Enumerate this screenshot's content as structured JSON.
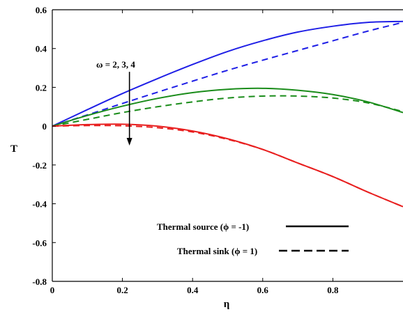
{
  "chart_data": {
    "type": "line",
    "title": "",
    "xlabel": "η",
    "ylabel": "T",
    "xlim": [
      0,
      1
    ],
    "ylim": [
      -0.8,
      0.6
    ],
    "xticks": [
      0,
      0.2,
      0.4,
      0.6,
      0.8
    ],
    "xtick_labels": [
      "0",
      "0.2",
      "0.4",
      "0.6",
      "0.8"
    ],
    "yticks": [
      -0.8,
      -0.6,
      -0.4,
      -0.2,
      0,
      0.2,
      0.4,
      0.6
    ],
    "ytick_labels": [
      "-0.8",
      "-0.6",
      "-0.4",
      "-0.2",
      "0",
      "0.2",
      "0.4",
      "0.6"
    ],
    "grid": false,
    "x": [
      0,
      0.1,
      0.2,
      0.3,
      0.4,
      0.5,
      0.6,
      0.7,
      0.8,
      0.9,
      1.0
    ],
    "series": [
      {
        "color": "#1f1fe6",
        "style": "solid",
        "values": [
          0,
          0.085,
          0.168,
          0.245,
          0.318,
          0.385,
          0.44,
          0.485,
          0.515,
          0.535,
          0.54
        ]
      },
      {
        "color": "#1f1fe6",
        "style": "dashed",
        "values": [
          0,
          0.058,
          0.117,
          0.175,
          0.232,
          0.288,
          0.34,
          0.39,
          0.44,
          0.49,
          0.535
        ]
      },
      {
        "color": "#1a8c1a",
        "style": "solid",
        "values": [
          0,
          0.055,
          0.103,
          0.143,
          0.173,
          0.19,
          0.195,
          0.185,
          0.163,
          0.125,
          0.07
        ]
      },
      {
        "color": "#1a8c1a",
        "style": "dashed",
        "values": [
          0,
          0.035,
          0.07,
          0.1,
          0.125,
          0.145,
          0.155,
          0.155,
          0.145,
          0.12,
          0.075
        ]
      },
      {
        "color": "#e81f1f",
        "style": "solid",
        "values": [
          0,
          0.008,
          0.01,
          0.0,
          -0.025,
          -0.065,
          -0.12,
          -0.19,
          -0.26,
          -0.34,
          -0.415
        ]
      },
      {
        "color": "#e81f1f",
        "style": "dashed",
        "values": [
          0,
          0.003,
          0.002,
          -0.008,
          -0.03,
          -0.068,
          -0.12,
          -0.19,
          -0.26,
          -0.34,
          -0.415
        ]
      }
    ],
    "annotations": [
      {
        "text": "ω = 2, 3, 4",
        "arrow_x": 0.22,
        "arrow_from": 0.28,
        "arrow_to": -0.1
      }
    ],
    "legend": {
      "placement": "bottom-right",
      "entries": [
        {
          "label": "Thermal source (ϕ = -1)",
          "style": "solid"
        },
        {
          "label": "Thermal sink (ϕ = 1)",
          "style": "dashed"
        }
      ]
    }
  }
}
